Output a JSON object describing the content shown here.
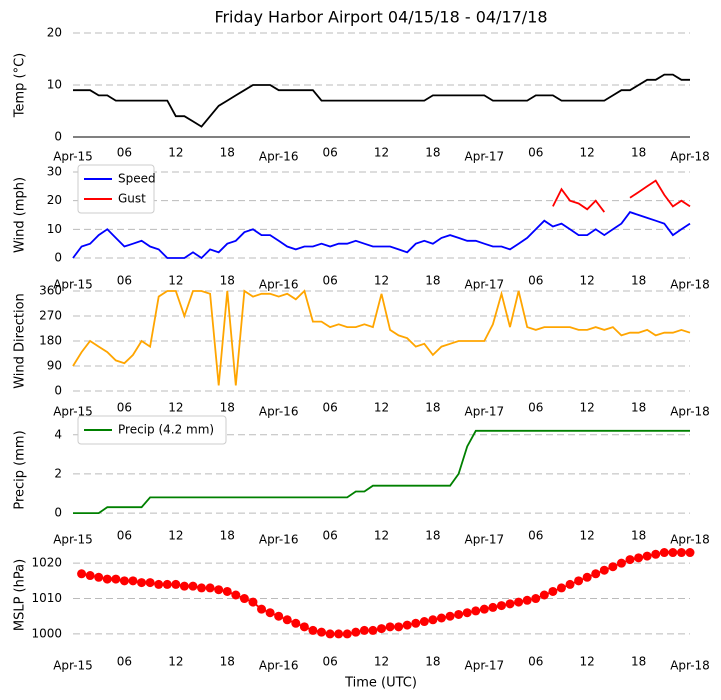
{
  "chart_data": [
    {
      "type": "line",
      "title": "Friday Harbor Airport 04/15/18 - 04/17/18",
      "ylabel": "Temp (°C)",
      "x": [
        0,
        1,
        2,
        3,
        4,
        5,
        6,
        7,
        8,
        9,
        10,
        11,
        12,
        13,
        14,
        15,
        16,
        17,
        18,
        19,
        20,
        21,
        22,
        23,
        24,
        25,
        26,
        27,
        28,
        29,
        30,
        31,
        32,
        33,
        34,
        35,
        36,
        37,
        38,
        39,
        40,
        41,
        42,
        43,
        44,
        45,
        46,
        47,
        48,
        49,
        50,
        51,
        52,
        53,
        54,
        55,
        56,
        57,
        58,
        59,
        60,
        61,
        62,
        63,
        64,
        65,
        66,
        67,
        68,
        69,
        70,
        71,
        72
      ],
      "series": [
        {
          "name": "Temp",
          "color": "#000000",
          "values": [
            9,
            9,
            9,
            8,
            8,
            7,
            7,
            7,
            7,
            7,
            7,
            7,
            4,
            4,
            3,
            2,
            4,
            6,
            7,
            8,
            9,
            10,
            10,
            10,
            9,
            9,
            9,
            9,
            9,
            7,
            7,
            7,
            7,
            7,
            7,
            7,
            7,
            7,
            7,
            7,
            7,
            7,
            8,
            8,
            8,
            8,
            8,
            8,
            8,
            7,
            7,
            7,
            7,
            7,
            8,
            8,
            8,
            7,
            7,
            7,
            7,
            7,
            7,
            8,
            9,
            9,
            10,
            11,
            11,
            12,
            12,
            11,
            11
          ]
        }
      ],
      "xlim": [
        0,
        72
      ],
      "ylim": [
        0,
        20
      ],
      "yticks": [
        0,
        10,
        20
      ],
      "grid": true,
      "axis_line": true,
      "xticks": [
        {
          "value": 0,
          "label": "Apr-15"
        },
        {
          "value": 6,
          "label": "06"
        },
        {
          "value": 12,
          "label": "12"
        },
        {
          "value": 18,
          "label": "18"
        },
        {
          "value": 24,
          "label": "Apr-16"
        },
        {
          "value": 30,
          "label": "06"
        },
        {
          "value": 36,
          "label": "12"
        },
        {
          "value": 42,
          "label": "18"
        },
        {
          "value": 48,
          "label": "Apr-17"
        },
        {
          "value": 54,
          "label": "06"
        },
        {
          "value": 60,
          "label": "12"
        },
        {
          "value": 66,
          "label": "18"
        },
        {
          "value": 72,
          "label": "Apr-18"
        }
      ]
    },
    {
      "type": "line",
      "ylabel": "Wind (mph)",
      "legend": "upper left",
      "x": [
        0,
        1,
        2,
        3,
        4,
        5,
        6,
        7,
        8,
        9,
        10,
        11,
        12,
        13,
        14,
        15,
        16,
        17,
        18,
        19,
        20,
        21,
        22,
        23,
        24,
        25,
        26,
        27,
        28,
        29,
        30,
        31,
        32,
        33,
        34,
        35,
        36,
        37,
        38,
        39,
        40,
        41,
        42,
        43,
        44,
        45,
        46,
        47,
        48,
        49,
        50,
        51,
        52,
        53,
        54,
        55,
        56,
        57,
        58,
        59,
        60,
        61,
        62,
        63,
        64,
        65,
        66,
        67,
        68,
        69,
        70,
        71,
        72
      ],
      "series": [
        {
          "name": "Speed",
          "color": "#0000ff",
          "values": [
            0,
            4,
            5,
            8,
            10,
            7,
            4,
            5,
            6,
            4,
            3,
            0,
            0,
            0,
            2,
            0,
            3,
            2,
            5,
            6,
            9,
            10,
            8,
            8,
            6,
            4,
            3,
            4,
            4,
            5,
            4,
            5,
            5,
            6,
            5,
            4,
            4,
            4,
            3,
            2,
            5,
            6,
            5,
            7,
            8,
            7,
            6,
            6,
            5,
            4,
            4,
            3,
            5,
            7,
            10,
            13,
            11,
            12,
            10,
            8,
            8,
            10,
            8,
            10,
            12,
            16,
            15,
            14,
            13,
            12,
            8,
            10,
            12
          ]
        },
        {
          "name": "Gust",
          "color": "#ff0000",
          "values": [
            null,
            null,
            null,
            null,
            null,
            null,
            null,
            null,
            null,
            null,
            null,
            null,
            null,
            null,
            null,
            null,
            null,
            null,
            null,
            null,
            null,
            null,
            null,
            null,
            null,
            null,
            null,
            null,
            null,
            null,
            null,
            null,
            null,
            null,
            null,
            null,
            null,
            null,
            null,
            null,
            null,
            null,
            null,
            null,
            null,
            null,
            null,
            null,
            null,
            null,
            null,
            null,
            null,
            null,
            null,
            null,
            18,
            24,
            20,
            19,
            17,
            20,
            16,
            null,
            null,
            21,
            23,
            25,
            27,
            22,
            18,
            20,
            18
          ]
        }
      ],
      "xlim": [
        0,
        72
      ],
      "ylim": [
        0,
        30
      ],
      "yticks": [
        0,
        10,
        20,
        30
      ],
      "grid": true,
      "xticks": [
        {
          "value": 0,
          "label": "Apr-15"
        },
        {
          "value": 6,
          "label": "06"
        },
        {
          "value": 12,
          "label": "12"
        },
        {
          "value": 18,
          "label": "18"
        },
        {
          "value": 24,
          "label": "Apr-16"
        },
        {
          "value": 30,
          "label": "06"
        },
        {
          "value": 36,
          "label": "12"
        },
        {
          "value": 42,
          "label": "18"
        },
        {
          "value": 48,
          "label": "Apr-17"
        },
        {
          "value": 54,
          "label": "06"
        },
        {
          "value": 60,
          "label": "12"
        },
        {
          "value": 66,
          "label": "18"
        },
        {
          "value": 72,
          "label": "Apr-18"
        }
      ]
    },
    {
      "type": "line",
      "ylabel": "Wind Direction",
      "x": [
        0,
        1,
        2,
        3,
        4,
        5,
        6,
        7,
        8,
        9,
        10,
        11,
        12,
        13,
        14,
        15,
        16,
        17,
        18,
        19,
        20,
        21,
        22,
        23,
        24,
        25,
        26,
        27,
        28,
        29,
        30,
        31,
        32,
        33,
        34,
        35,
        36,
        37,
        38,
        39,
        40,
        41,
        42,
        43,
        44,
        45,
        46,
        47,
        48,
        49,
        50,
        51,
        52,
        53,
        54,
        55,
        56,
        57,
        58,
        59,
        60,
        61,
        62,
        63,
        64,
        65,
        66,
        67,
        68,
        69,
        70,
        71,
        72
      ],
      "series": [
        {
          "name": "Direction",
          "color": "#ffa500",
          "values": [
            90,
            140,
            180,
            160,
            140,
            110,
            100,
            130,
            180,
            160,
            340,
            360,
            360,
            270,
            360,
            360,
            350,
            20,
            360,
            20,
            360,
            340,
            350,
            350,
            340,
            350,
            330,
            360,
            250,
            250,
            230,
            240,
            230,
            230,
            240,
            230,
            350,
            220,
            200,
            190,
            160,
            170,
            130,
            160,
            170,
            180,
            180,
            180,
            180,
            240,
            350,
            230,
            360,
            230,
            220,
            230,
            230,
            230,
            230,
            220,
            220,
            230,
            220,
            230,
            200,
            210,
            210,
            220,
            200,
            210,
            210,
            220,
            210
          ]
        }
      ],
      "xlim": [
        0,
        72
      ],
      "ylim": [
        0,
        360
      ],
      "yticks": [
        0,
        90,
        180,
        270,
        360
      ],
      "grid": true,
      "xticks": [
        {
          "value": 0,
          "label": "Apr-15"
        },
        {
          "value": 6,
          "label": "06"
        },
        {
          "value": 12,
          "label": "12"
        },
        {
          "value": 18,
          "label": "18"
        },
        {
          "value": 24,
          "label": "Apr-16"
        },
        {
          "value": 30,
          "label": "06"
        },
        {
          "value": 36,
          "label": "12"
        },
        {
          "value": 42,
          "label": "18"
        },
        {
          "value": 48,
          "label": "Apr-17"
        },
        {
          "value": 54,
          "label": "06"
        },
        {
          "value": 60,
          "label": "12"
        },
        {
          "value": 66,
          "label": "18"
        },
        {
          "value": 72,
          "label": "Apr-18"
        }
      ]
    },
    {
      "type": "line",
      "ylabel": "Precip (mm)",
      "legend": "upper left",
      "x": [
        0,
        1,
        2,
        3,
        4,
        5,
        6,
        7,
        8,
        9,
        10,
        11,
        12,
        13,
        14,
        15,
        16,
        17,
        18,
        19,
        20,
        21,
        22,
        23,
        24,
        25,
        26,
        27,
        28,
        29,
        30,
        31,
        32,
        33,
        34,
        35,
        36,
        37,
        38,
        39,
        40,
        41,
        42,
        43,
        44,
        45,
        46,
        47,
        48,
        49,
        50,
        51,
        52,
        53,
        54,
        55,
        56,
        57,
        58,
        59,
        60,
        61,
        62,
        63,
        64,
        65,
        66,
        67,
        68,
        69,
        70,
        71,
        72
      ],
      "series": [
        {
          "name": "Precip (4.2 mm)",
          "color": "#008000",
          "values": [
            0,
            0,
            0,
            0,
            0.3,
            0.3,
            0.3,
            0.3,
            0.3,
            0.8,
            0.8,
            0.8,
            0.8,
            0.8,
            0.8,
            0.8,
            0.8,
            0.8,
            0.8,
            0.8,
            0.8,
            0.8,
            0.8,
            0.8,
            0.8,
            0.8,
            0.8,
            0.8,
            0.8,
            0.8,
            0.8,
            0.8,
            0.8,
            1.1,
            1.1,
            1.4,
            1.4,
            1.4,
            1.4,
            1.4,
            1.4,
            1.4,
            1.4,
            1.4,
            1.4,
            2.0,
            3.4,
            4.2,
            4.2,
            4.2,
            4.2,
            4.2,
            4.2,
            4.2,
            4.2,
            4.2,
            4.2,
            4.2,
            4.2,
            4.2,
            4.2,
            4.2,
            4.2,
            4.2,
            4.2,
            4.2,
            4.2,
            4.2,
            4.2,
            4.2,
            4.2,
            4.2,
            4.2
          ]
        }
      ],
      "xlim": [
        0,
        72
      ],
      "ylim": [
        -0.2,
        4.6
      ],
      "yticks": [
        0,
        2,
        4
      ],
      "grid": true,
      "xticks": [
        {
          "value": 0,
          "label": "Apr-15"
        },
        {
          "value": 6,
          "label": "06"
        },
        {
          "value": 12,
          "label": "12"
        },
        {
          "value": 18,
          "label": "18"
        },
        {
          "value": 24,
          "label": "Apr-16"
        },
        {
          "value": 30,
          "label": "06"
        },
        {
          "value": 36,
          "label": "12"
        },
        {
          "value": 42,
          "label": "18"
        },
        {
          "value": 48,
          "label": "Apr-17"
        },
        {
          "value": 54,
          "label": "06"
        },
        {
          "value": 60,
          "label": "12"
        },
        {
          "value": 66,
          "label": "18"
        },
        {
          "value": 72,
          "label": "Apr-18"
        }
      ]
    },
    {
      "type": "line",
      "ylabel": "MSLP (hPa)",
      "xlabel": "Time (UTC)",
      "x": [
        1,
        2,
        3,
        4,
        5,
        6,
        7,
        8,
        9,
        10,
        11,
        12,
        13,
        14,
        15,
        16,
        17,
        18,
        19,
        20,
        21,
        22,
        23,
        24,
        25,
        26,
        27,
        28,
        29,
        30,
        31,
        32,
        33,
        34,
        35,
        36,
        37,
        38,
        39,
        40,
        41,
        42,
        43,
        44,
        45,
        46,
        47,
        48,
        49,
        50,
        51,
        52,
        53,
        54,
        55,
        56,
        57,
        58,
        59,
        60,
        61,
        62,
        63,
        64,
        65,
        66,
        67,
        68,
        69,
        70,
        71,
        72
      ],
      "series": [
        {
          "name": "MSLP",
          "color": "#ff0000",
          "marker": "o",
          "values": [
            1017,
            1016.5,
            1016,
            1015.5,
            1015.5,
            1015,
            1015,
            1014.5,
            1014.5,
            1014,
            1014,
            1014,
            1013.5,
            1013.5,
            1013,
            1013,
            1012.5,
            1012,
            1011,
            1010,
            1009,
            1007,
            1006,
            1005,
            1004,
            1003,
            1002,
            1001,
            1000.5,
            1000,
            1000,
            1000,
            1000.5,
            1001,
            1001,
            1001.5,
            1002,
            1002,
            1002.5,
            1003,
            1003.5,
            1004,
            1004.5,
            1005,
            1005.5,
            1006,
            1006.5,
            1007,
            1007.5,
            1008,
            1008.5,
            1009,
            1009.5,
            1010,
            1011,
            1012,
            1013,
            1014,
            1015,
            1016,
            1017,
            1018,
            1019,
            1020,
            1021,
            1021.5,
            1022,
            1022.5,
            1023,
            1023,
            1023,
            1023
          ]
        }
      ],
      "xlim": [
        0,
        72
      ],
      "ylim": [
        998,
        1024
      ],
      "yticks": [
        1000,
        1010,
        1020
      ],
      "grid": true,
      "xticks": [
        {
          "value": 0,
          "label": "Apr-15"
        },
        {
          "value": 6,
          "label": "06"
        },
        {
          "value": 12,
          "label": "12"
        },
        {
          "value": 18,
          "label": "18"
        },
        {
          "value": 24,
          "label": "Apr-16"
        },
        {
          "value": 30,
          "label": "06"
        },
        {
          "value": 36,
          "label": "12"
        },
        {
          "value": 42,
          "label": "18"
        },
        {
          "value": 48,
          "label": "Apr-17"
        },
        {
          "value": 54,
          "label": "06"
        },
        {
          "value": 60,
          "label": "12"
        },
        {
          "value": 66,
          "label": "18"
        },
        {
          "value": 72,
          "label": "Apr-18"
        }
      ]
    }
  ]
}
